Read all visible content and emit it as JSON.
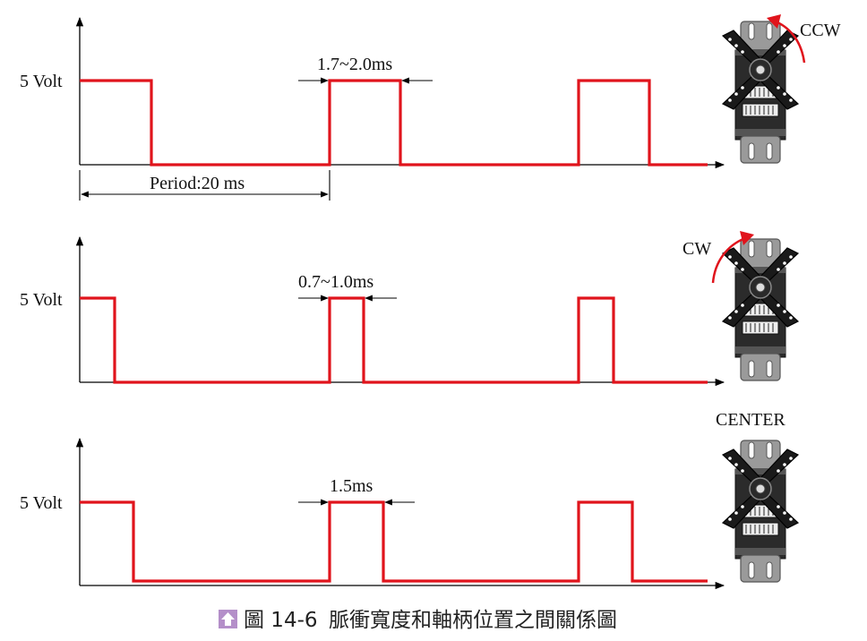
{
  "panels": [
    {
      "id": "ccw",
      "voltage_label": "5 Volt",
      "pulse_width_label": "1.7~2.0ms",
      "period_label": "Period:20 ms",
      "position_label": "CCW"
    },
    {
      "id": "cw",
      "voltage_label": "5 Volt",
      "pulse_width_label": "0.7~1.0ms",
      "position_label": "CW"
    },
    {
      "id": "center",
      "voltage_label": "5 Volt",
      "pulse_width_label": "1.5ms",
      "position_label": "CENTER"
    }
  ],
  "caption": {
    "icon": "up-arrow-icon",
    "figure_number": "圖 14-6",
    "text": "脈衝寬度和軸柄位置之間關係圖"
  },
  "colors": {
    "signal": "#e0141c",
    "servo_body": "#2b2b2b",
    "servo_tab": "#9a9a9a",
    "caption_icon": "#b48fc9"
  }
}
